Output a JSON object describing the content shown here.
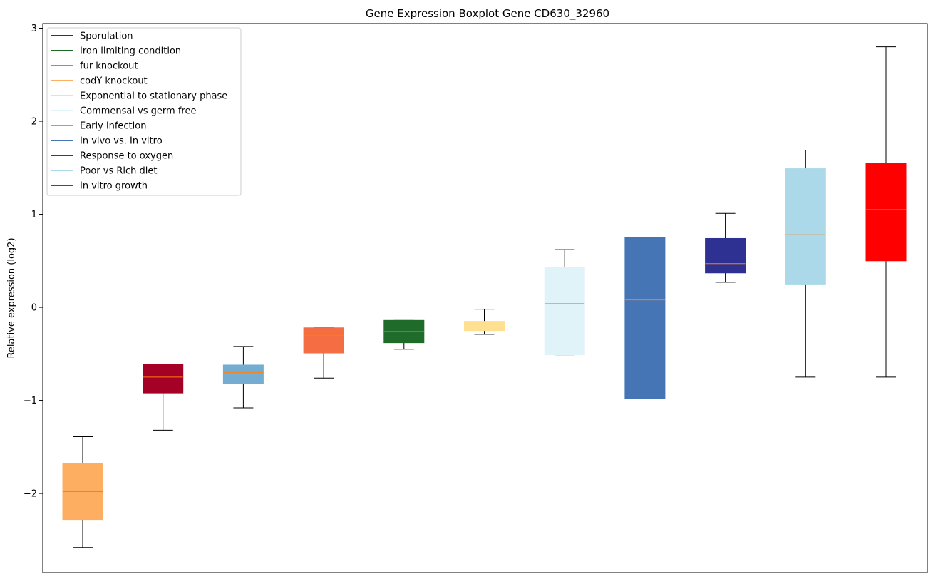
{
  "chart_data": {
    "type": "boxplot",
    "title": "Gene Expression Boxplot Gene CD630_32960",
    "xlabel": "",
    "ylabel": "Relative expression (log2)",
    "ylim": [
      -2.85,
      3.05
    ],
    "yticks": [
      -2,
      -1,
      0,
      1,
      2,
      3
    ],
    "ytick_labels": [
      "−2",
      "−1",
      "0",
      "1",
      "2",
      "3"
    ],
    "legend_position": "top-left",
    "median_color": "#ff7f0e",
    "legend": [
      {
        "label": "Sporulation",
        "color": "#a50026"
      },
      {
        "label": "Iron limiting condition",
        "color": "#1f6b2a"
      },
      {
        "label": "fur knockout",
        "color": "#f46d43"
      },
      {
        "label": "codY knockout",
        "color": "#fdae61"
      },
      {
        "label": "Exponential to stationary phase",
        "color": "#fee090"
      },
      {
        "label": "Commensal vs germ free",
        "color": "#e0f3f8"
      },
      {
        "label": "Early infection",
        "color": "#74add1"
      },
      {
        "label": "In vivo vs. In vitro",
        "color": "#4575b4"
      },
      {
        "label": "Response to oxygen",
        "color": "#313695"
      },
      {
        "label": "Poor vs Rich diet",
        "color": "#abd9e9"
      },
      {
        "label": "In vitro growth",
        "color": "#ff0000"
      }
    ],
    "boxes": [
      {
        "group": "codY knockout",
        "color": "#fdae61",
        "whisker_low": -2.58,
        "q1": -2.28,
        "median": -1.98,
        "q3": -1.68,
        "whisker_high": -1.39
      },
      {
        "group": "Sporulation",
        "color": "#a50026",
        "whisker_low": -1.32,
        "q1": -0.92,
        "median": -0.75,
        "q3": -0.61,
        "whisker_high": -0.61
      },
      {
        "group": "Early infection",
        "color": "#74add1",
        "whisker_low": -1.08,
        "q1": -0.82,
        "median": -0.7,
        "q3": -0.62,
        "whisker_high": -0.42
      },
      {
        "group": "fur knockout",
        "color": "#f46d43",
        "whisker_low": -0.76,
        "q1": -0.49,
        "median": -0.3,
        "q3": -0.22,
        "whisker_high": -0.22
      },
      {
        "group": "Iron limiting condition",
        "color": "#1f6b2a",
        "whisker_low": -0.45,
        "q1": -0.38,
        "median": -0.26,
        "q3": -0.14,
        "whisker_high": -0.14
      },
      {
        "group": "Exponential to stationary phase",
        "color": "#fee090",
        "whisker_low": -0.29,
        "q1": -0.25,
        "median": -0.18,
        "q3": -0.15,
        "whisker_high": -0.02
      },
      {
        "group": "Commensal vs germ free",
        "color": "#e0f3f8",
        "whisker_low": -0.51,
        "q1": -0.51,
        "median": 0.04,
        "q3": 0.43,
        "whisker_high": 0.62
      },
      {
        "group": "In vivo vs. In vitro",
        "color": "#4575b4",
        "whisker_low": -0.98,
        "q1": -0.98,
        "median": 0.08,
        "q3": 0.75,
        "whisker_high": 0.75
      },
      {
        "group": "Response to oxygen",
        "color": "#2e3192",
        "whisker_low": 0.27,
        "q1": 0.37,
        "median": 0.47,
        "q3": 0.74,
        "whisker_high": 1.01
      },
      {
        "group": "Poor vs Rich diet",
        "color": "#abd9e9",
        "whisker_low": -0.75,
        "q1": 0.25,
        "median": 0.78,
        "q3": 1.49,
        "whisker_high": 1.69
      },
      {
        "group": "In vitro growth",
        "color": "#ff0000",
        "whisker_low": -0.75,
        "q1": 0.5,
        "median": 1.05,
        "q3": 1.55,
        "whisker_high": 2.8
      }
    ]
  }
}
